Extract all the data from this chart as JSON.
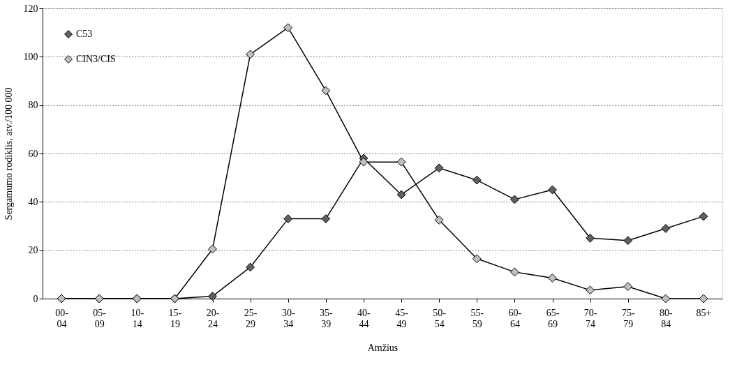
{
  "chart_data": {
    "type": "line",
    "xlabel": "Amžius",
    "ylabel": "Sergamumo rodiklis, atv./100 000",
    "categories": [
      "00-04",
      "05-09",
      "10-14",
      "15-19",
      "20-24",
      "25-29",
      "30-34",
      "35-39",
      "40-44",
      "45-49",
      "50-54",
      "55-59",
      "60-64",
      "65-69",
      "70-74",
      "75-79",
      "80-84",
      "85+"
    ],
    "series": [
      {
        "name": "C53",
        "color": "#606060",
        "values": [
          0,
          0,
          0,
          0,
          1,
          13,
          33,
          33,
          58,
          43,
          54,
          49,
          41,
          45,
          25,
          24,
          29,
          34
        ]
      },
      {
        "name": "CIN3/CIS",
        "color": "#c0c0c0",
        "values": [
          0,
          0,
          0,
          0,
          20.5,
          101,
          112,
          86,
          56.5,
          56.5,
          32.5,
          16.5,
          11,
          8.5,
          3.5,
          5,
          0,
          0
        ]
      }
    ],
    "ylim": [
      0,
      120
    ],
    "yticks": [
      0,
      20,
      40,
      60,
      80,
      100,
      120
    ],
    "grid": "y",
    "legend": "top left",
    "marker": "diamond",
    "line_style": "solid"
  }
}
